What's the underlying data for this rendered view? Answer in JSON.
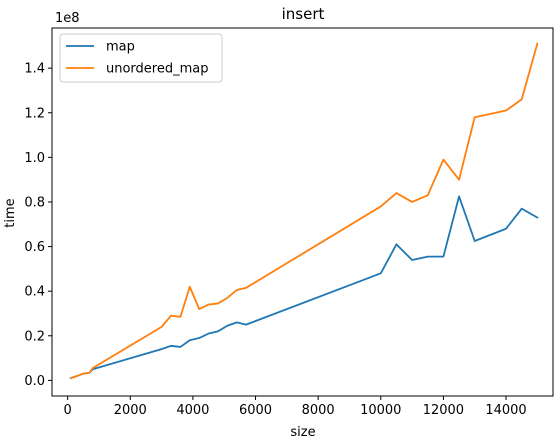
{
  "chart_data": {
    "type": "line",
    "title": "insert",
    "xlabel": "size",
    "ylabel": "time",
    "y_offset_label": "1e8",
    "xlim": [
      -500,
      15500
    ],
    "ylim": [
      -0.07,
      1.58
    ],
    "x_ticks": [
      0,
      2000,
      4000,
      6000,
      8000,
      10000,
      12000,
      14000
    ],
    "x_tick_labels": [
      "0",
      "2000",
      "4000",
      "6000",
      "8000",
      "10000",
      "12000",
      "14000"
    ],
    "y_ticks": [
      0.0,
      0.2,
      0.4,
      0.6,
      0.8,
      1.0,
      1.2,
      1.4
    ],
    "y_tick_labels": [
      "0.0",
      "0.2",
      "0.4",
      "0.6",
      "0.8",
      "1.0",
      "1.2",
      "1.4"
    ],
    "grid": false,
    "legend_position": "top-left",
    "series": [
      {
        "name": "map",
        "color": "#1f77b4",
        "x": [
          100,
          300,
          500,
          700,
          800,
          3000,
          3300,
          3600,
          3900,
          4200,
          4500,
          4800,
          5100,
          5400,
          5700,
          10000,
          10500,
          11000,
          11500,
          12000,
          12500,
          13000,
          14000,
          14500,
          15000
        ],
        "y": [
          0.01,
          0.02,
          0.03,
          0.035,
          0.05,
          0.14,
          0.155,
          0.15,
          0.18,
          0.19,
          0.21,
          0.22,
          0.245,
          0.26,
          0.25,
          0.48,
          0.61,
          0.54,
          0.555,
          0.555,
          0.825,
          0.625,
          0.68,
          0.77,
          0.73
        ]
      },
      {
        "name": "unordered_map",
        "color": "#ff7f0e",
        "x": [
          100,
          300,
          500,
          700,
          800,
          3000,
          3300,
          3600,
          3900,
          4200,
          4500,
          4800,
          5100,
          5400,
          5700,
          10000,
          10500,
          11000,
          11500,
          12000,
          12500,
          13000,
          14000,
          14500,
          15000
        ],
        "y": [
          0.01,
          0.02,
          0.03,
          0.035,
          0.055,
          0.24,
          0.29,
          0.285,
          0.42,
          0.32,
          0.34,
          0.345,
          0.37,
          0.405,
          0.415,
          0.78,
          0.84,
          0.8,
          0.83,
          0.99,
          0.9,
          1.18,
          1.21,
          1.26,
          1.51
        ]
      }
    ]
  }
}
